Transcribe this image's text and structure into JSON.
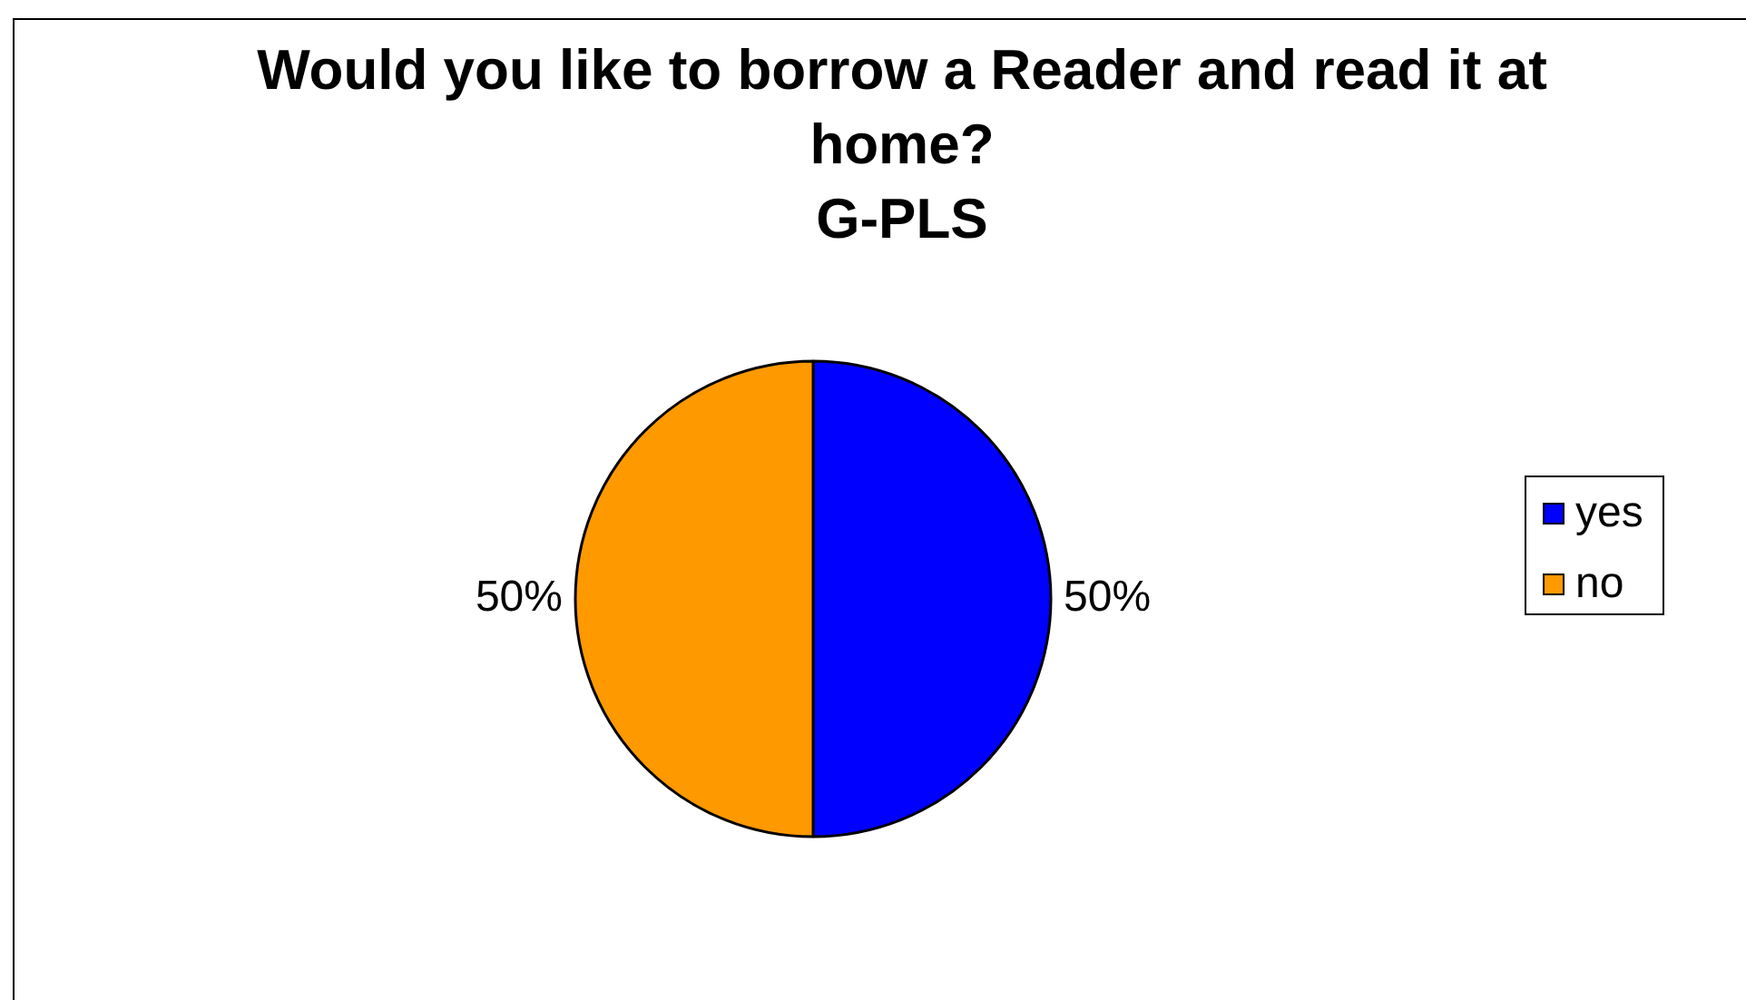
{
  "chart_data": {
    "type": "pie",
    "title": "Would you like to borrow a Reader and read it at home?",
    "subtitle": "G-PLS",
    "categories": [
      "yes",
      "no"
    ],
    "values": [
      50,
      50
    ],
    "colors": [
      "#0000ff",
      "#ff9900"
    ],
    "value_labels": [
      "50%",
      "50%"
    ],
    "legend": "right"
  }
}
